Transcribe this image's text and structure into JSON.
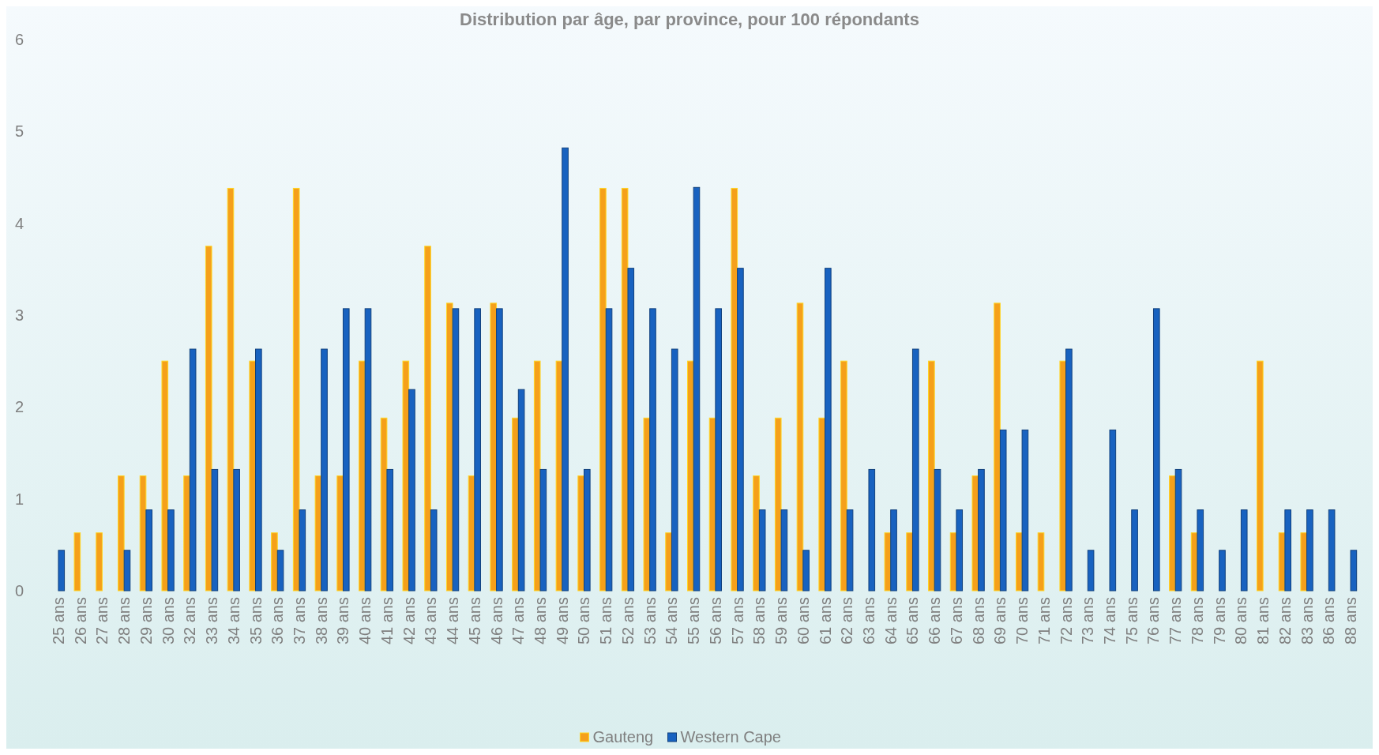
{
  "chart_data": {
    "type": "bar",
    "title": "Distribution par âge, par province, pour 100 répondants",
    "categories": [
      "25 ans",
      "26 ans",
      "27 ans",
      "28 ans",
      "29 ans",
      "30 ans",
      "32 ans",
      "33 ans",
      "34 ans",
      "35 ans",
      "36 ans",
      "37 ans",
      "38 ans",
      "39 ans",
      "40 ans",
      "41 ans",
      "42 ans",
      "43 ans",
      "44 ans",
      "45 ans",
      "46 ans",
      "47 ans",
      "48 ans",
      "49 ans",
      "50 ans",
      "51 ans",
      "52 ans",
      "53 ans",
      "54 ans",
      "55 ans",
      "56 ans",
      "57 ans",
      "58 ans",
      "59 ans",
      "60 ans",
      "61 ans",
      "62 ans",
      "63 ans",
      "64 ans",
      "65 ans",
      "66 ans",
      "67 ans",
      "68 ans",
      "69 ans",
      "70 ans",
      "71 ans",
      "72 ans",
      "73 ans",
      "74 ans",
      "75 ans",
      "76 ans",
      "77 ans",
      "78 ans",
      "79 ans",
      "80 ans",
      "81 ans",
      "82 ans",
      "83 ans",
      "86 ans",
      "88 ans"
    ],
    "series": [
      {
        "name": "Gauteng",
        "color": "#f5a01a",
        "values": [
          0,
          0.63,
          0.63,
          1.25,
          1.25,
          2.5,
          1.25,
          3.75,
          4.38,
          2.5,
          0.63,
          4.38,
          1.25,
          1.25,
          2.5,
          1.88,
          2.5,
          3.75,
          3.13,
          1.25,
          3.13,
          1.88,
          2.5,
          2.5,
          1.25,
          4.38,
          4.38,
          1.88,
          0.63,
          2.5,
          1.88,
          4.38,
          1.25,
          1.88,
          3.13,
          1.88,
          2.5,
          0,
          0.63,
          0.63,
          2.5,
          0.63,
          1.25,
          3.13,
          0.63,
          0.63,
          2.5,
          0,
          0,
          0,
          0,
          1.25,
          0.63,
          0,
          0,
          2.5,
          0.63,
          0.63,
          0,
          0
        ]
      },
      {
        "name": "Western Cape",
        "color": "#1862c0",
        "values": [
          0.44,
          0,
          0,
          0.44,
          0.88,
          0.88,
          2.63,
          1.32,
          1.32,
          2.63,
          0.44,
          0.88,
          2.63,
          3.07,
          3.07,
          1.32,
          2.19,
          0.88,
          3.07,
          3.07,
          3.07,
          2.19,
          1.32,
          4.82,
          1.32,
          3.07,
          3.51,
          3.07,
          2.63,
          4.39,
          3.07,
          3.51,
          0.88,
          0.88,
          0.44,
          3.51,
          0.88,
          1.32,
          0.88,
          2.63,
          1.32,
          0.88,
          1.32,
          1.75,
          1.75,
          0,
          2.63,
          0.44,
          1.75,
          0.88,
          3.07,
          1.32,
          0.88,
          0.44,
          0.88,
          0,
          0.88,
          0.88,
          0.88,
          0.44
        ]
      }
    ],
    "ylim": [
      0,
      6
    ],
    "yticks": [
      0,
      1,
      2,
      3,
      4,
      5,
      6
    ],
    "legend": "bottom"
  }
}
